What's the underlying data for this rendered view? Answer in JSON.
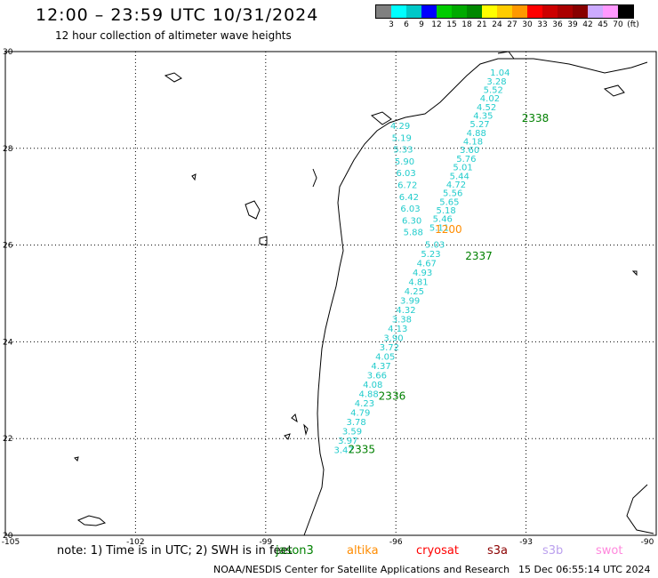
{
  "header": {
    "title": "12:00 – 23:59 UTC 10/31/2024",
    "subtitle": "12 hour collection of altimeter wave heights"
  },
  "colorbar": {
    "colors": [
      "#808080",
      "#00ffff",
      "#00c8c8",
      "#0000ff",
      "#00cc00",
      "#00aa00",
      "#008800",
      "#ffff00",
      "#ffcc00",
      "#ff9900",
      "#ff0000",
      "#cc0000",
      "#aa0000",
      "#880000",
      "#ccaaff",
      "#ff99ff",
      "#000000"
    ],
    "labels": [
      "3",
      "6",
      "9",
      "12",
      "15",
      "18",
      "21",
      "24",
      "27",
      "30",
      "33",
      "36",
      "39",
      "42",
      "45",
      "70",
      "(ft)"
    ]
  },
  "map": {
    "lon_ticks": [
      "-105",
      "-102",
      "-99",
      "-96",
      "-93",
      "-90"
    ],
    "lat_ticks": [
      "30",
      "28",
      "26",
      "24",
      "22",
      "20"
    ],
    "extent": {
      "lon_min": -105,
      "lon_max": -90,
      "lat_min": 20,
      "lat_max": 30
    },
    "grid": true,
    "track_color": "#22cccc",
    "tracks": [
      {
        "values": [
          "1.04",
          "3.28",
          "5.52",
          "4.02",
          "4.52",
          "4.35",
          "5.27",
          "4.88",
          "4.18",
          "3.60",
          "5.76",
          "5.01",
          "5.44",
          "4.72",
          "5.56",
          "5.65",
          "5.18",
          "5.46",
          "5.11"
        ],
        "start": [
          -93.6,
          29.5
        ],
        "end": [
          -95.0,
          26.3
        ]
      },
      {
        "values": [
          "4.29",
          "5.19",
          "5.33",
          "5.90",
          "6.03",
          "6.72",
          "6.42",
          "6.03",
          "6.30",
          "5.88"
        ],
        "start": [
          -95.9,
          28.4
        ],
        "end": [
          -95.6,
          26.2
        ]
      },
      {
        "values": [
          "5.03",
          "5.23",
          "4.67",
          "4.93",
          "4.81",
          "4.25",
          "3.99",
          "4.32",
          "3.38",
          "4.13",
          "3.90",
          "3.72",
          "4.05",
          "4.37",
          "3.66",
          "4.08",
          "4.88",
          "4.23",
          "4.79",
          "3.78",
          "3.59",
          "3.97",
          "3.47"
        ],
        "start": [
          -95.1,
          25.95
        ],
        "end": [
          -97.2,
          21.7
        ]
      }
    ],
    "annotations": [
      {
        "text": "2338",
        "lon": -93.1,
        "lat": 28.55,
        "color": "#008000"
      },
      {
        "text": "1200",
        "lon": -95.1,
        "lat": 26.25,
        "color": "#ff8c00"
      },
      {
        "text": "2337",
        "lon": -94.4,
        "lat": 25.7,
        "color": "#008000"
      },
      {
        "text": "2336",
        "lon": -96.4,
        "lat": 22.8,
        "color": "#008000"
      },
      {
        "text": "2335",
        "lon": -97.1,
        "lat": 21.7,
        "color": "#008000"
      }
    ]
  },
  "footer": {
    "note": "note:  1) Time is in UTC; 2) SWH is in feet",
    "missions": [
      {
        "name": "jason3",
        "color": "#008000"
      },
      {
        "name": "altika",
        "color": "#ff8c00"
      },
      {
        "name": "cryosat",
        "color": "#ff0000"
      },
      {
        "name": "s3a",
        "color": "#8b0000"
      },
      {
        "name": "s3b",
        "color": "#bba0ee"
      },
      {
        "name": "swot",
        "color": "#ff88dd"
      }
    ],
    "credit": "NOAA/NESDIS Center for Satellite Applications and Research",
    "timestamp": "15 Dec 06:55:14 UTC 2024"
  }
}
